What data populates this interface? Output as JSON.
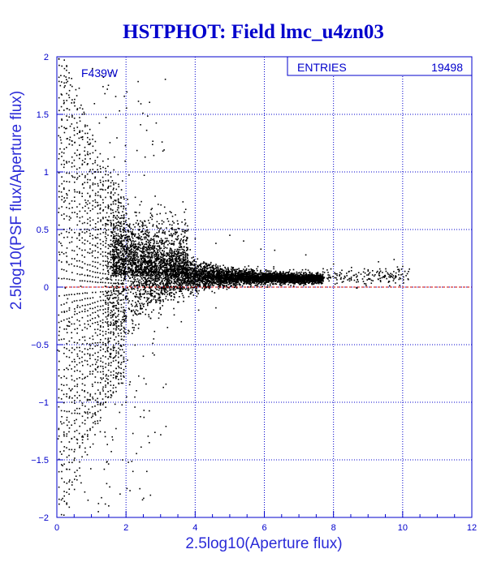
{
  "chart_data": {
    "type": "scatter",
    "title": "HSTPHOT: Field lmc_u4zn03",
    "xlabel": "2.5log10(Aperture flux)",
    "ylabel": "2.5log10(PSF flux/Aperture flux)",
    "xlim": [
      0,
      12
    ],
    "ylim": [
      -2,
      2
    ],
    "x_ticks": [
      0,
      2,
      4,
      6,
      8,
      10,
      12
    ],
    "x_tick_labels": [
      "0",
      "2",
      "4",
      "6",
      "8",
      "10",
      "12"
    ],
    "y_ticks": [
      -2,
      -1.5,
      -1,
      -0.5,
      0,
      0.5,
      1,
      1.5,
      2
    ],
    "y_tick_labels": [
      "−2",
      "−1.5",
      "−1",
      "−0.5",
      "0",
      "0.5",
      "1",
      "1.5",
      "2"
    ],
    "grid": true,
    "reference_line": {
      "y": 0,
      "color": "#cc0000"
    },
    "filter_label": "F439W",
    "stats_box": {
      "label": "ENTRIES",
      "value": "19498"
    },
    "series": [
      {
        "marker_color": "#000000",
        "points": [
          [
            0.1,
            1.75
          ],
          [
            0.2,
            1.62
          ],
          [
            0.3,
            1.55
          ],
          [
            0.5,
            1.6
          ],
          [
            0.7,
            1.58
          ],
          [
            0.3,
            1.45
          ],
          [
            0.5,
            1.38
          ],
          [
            0.7,
            1.3
          ],
          [
            0.1,
            1.3
          ],
          [
            0.9,
            1.15
          ],
          [
            1.1,
            1.0
          ],
          [
            0.2,
            1.1
          ],
          [
            0.6,
            0.95
          ],
          [
            1.3,
            0.85
          ],
          [
            1.5,
            0.7
          ],
          [
            1.7,
            0.6
          ],
          [
            2.0,
            0.58
          ],
          [
            2.2,
            0.5
          ],
          [
            2.6,
            0.52
          ],
          [
            3.1,
            0.47
          ],
          [
            3.5,
            0.55
          ],
          [
            4.0,
            0.42
          ],
          [
            4.6,
            0.38
          ],
          [
            5.0,
            0.45
          ],
          [
            5.4,
            0.4
          ],
          [
            5.9,
            0.33
          ],
          [
            6.3,
            0.32
          ],
          [
            7.2,
            0.28
          ],
          [
            8.0,
            0.2
          ],
          [
            9.0,
            0.15
          ],
          [
            9.3,
            0.22
          ],
          [
            10.1,
            0.1
          ],
          [
            10.0,
            0.18
          ],
          [
            9.6,
            0.05
          ],
          [
            7.5,
            0.12
          ],
          [
            0.3,
            0.8
          ],
          [
            0.4,
            0.6
          ],
          [
            0.9,
            0.75
          ],
          [
            1.2,
            0.5
          ],
          [
            0.6,
            -0.6
          ],
          [
            0.8,
            -0.9
          ],
          [
            1.1,
            -1.1
          ],
          [
            1.3,
            -0.8
          ],
          [
            1.6,
            -1.3
          ],
          [
            1.9,
            -1.5
          ],
          [
            2.2,
            -1.6
          ],
          [
            2.4,
            -1.75
          ],
          [
            2.6,
            -1.6
          ],
          [
            0.3,
            -1.2
          ],
          [
            0.5,
            -1.5
          ],
          [
            0.7,
            -1.7
          ],
          [
            0.9,
            -1.85
          ],
          [
            1.2,
            -1.95
          ],
          [
            1.5,
            -1.9
          ],
          [
            0.4,
            -0.9
          ],
          [
            1.8,
            -0.7
          ],
          [
            2.0,
            -1.0
          ],
          [
            2.3,
            -0.9
          ],
          [
            2.5,
            -0.6
          ],
          [
            2.8,
            -0.45
          ],
          [
            3.2,
            -0.35
          ],
          [
            3.6,
            -0.3
          ],
          [
            4.1,
            -0.2
          ],
          [
            4.6,
            -0.18
          ]
        ]
      }
    ]
  }
}
